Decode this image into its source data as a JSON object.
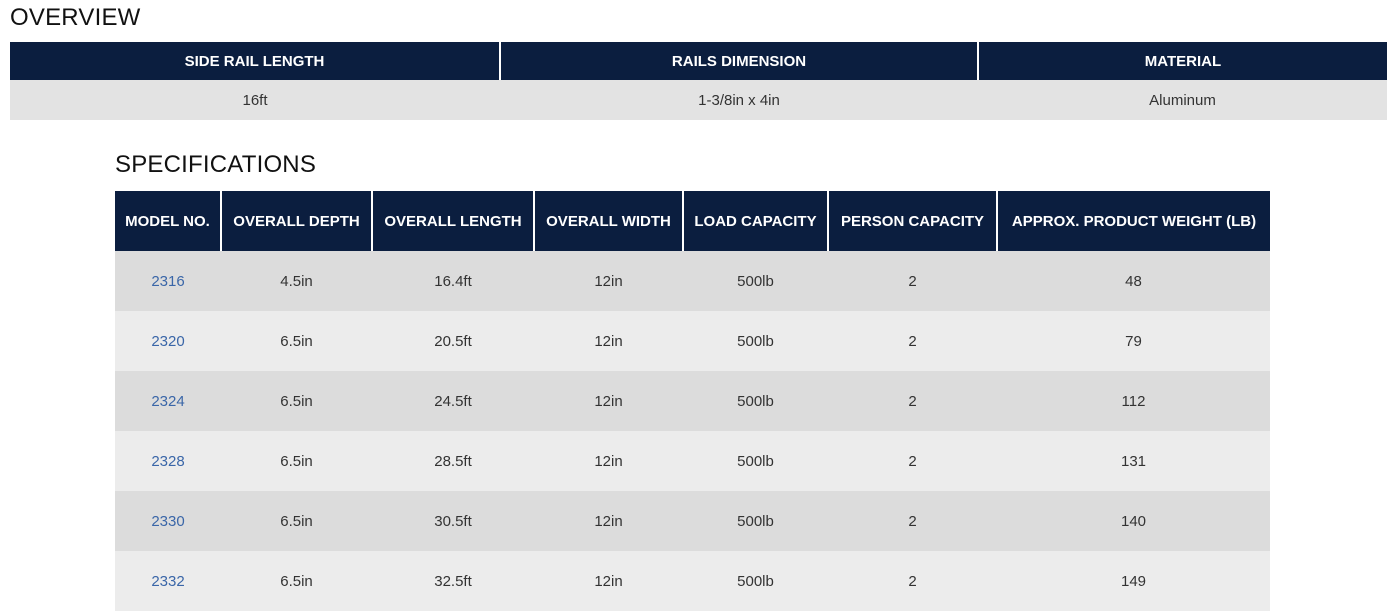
{
  "overview": {
    "title": "OVERVIEW",
    "headers": [
      "SIDE RAIL LENGTH",
      "RAILS DIMENSION",
      "MATERIAL"
    ],
    "values": [
      "16ft",
      "1-3/8in x 4in",
      "Aluminum"
    ]
  },
  "specifications": {
    "title": "SPECIFICATIONS",
    "headers": [
      "MODEL NO.",
      "OVERALL DEPTH",
      "OVERALL LENGTH",
      "OVERALL WIDTH",
      "LOAD CAPACITY",
      "PERSON CAPACITY",
      "APPROX. PRODUCT WEIGHT (LB)"
    ],
    "rows": [
      [
        "2316",
        "4.5in",
        "16.4ft",
        "12in",
        "500lb",
        "2",
        "48"
      ],
      [
        "2320",
        "6.5in",
        "20.5ft",
        "12in",
        "500lb",
        "2",
        "79"
      ],
      [
        "2324",
        "6.5in",
        "24.5ft",
        "12in",
        "500lb",
        "2",
        "112"
      ],
      [
        "2328",
        "6.5in",
        "28.5ft",
        "12in",
        "500lb",
        "2",
        "131"
      ],
      [
        "2330",
        "6.5in",
        "30.5ft",
        "12in",
        "500lb",
        "2",
        "140"
      ],
      [
        "2332",
        "6.5in",
        "32.5ft",
        "12in",
        "500lb",
        "2",
        "149"
      ]
    ]
  },
  "colors": {
    "header_bg": "#0b1e3f",
    "header_text": "#ffffff",
    "row_odd": "#dcdcdc",
    "row_even": "#ececec",
    "link": "#3a66a8"
  }
}
